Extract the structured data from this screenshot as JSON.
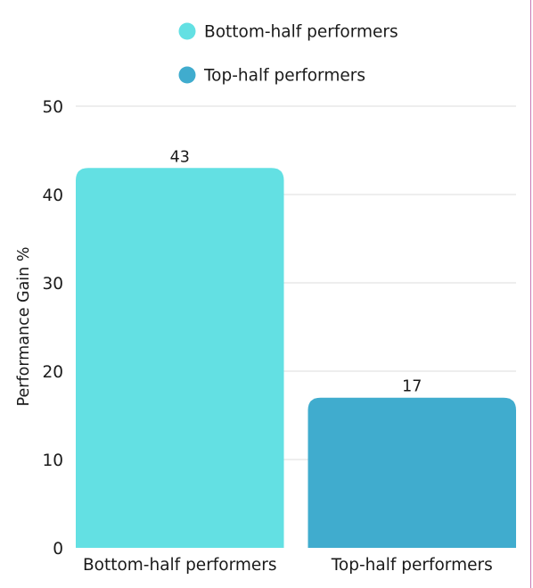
{
  "chart_data": {
    "type": "bar",
    "categories": [
      "Bottom-half performers",
      "Top-half performers"
    ],
    "values": [
      43,
      17
    ],
    "data_labels": [
      "43",
      "17"
    ],
    "colors": [
      "#63e0e3",
      "#40acce"
    ],
    "ylabel": "Performance Gain %",
    "xlabel": "",
    "ylim": [
      0,
      50
    ],
    "yticks": [
      0,
      10,
      20,
      30,
      40,
      50
    ],
    "ytick_labels": [
      "0",
      "10",
      "20",
      "30",
      "40",
      "50"
    ],
    "grid": true,
    "gridline_color": "#dcdcdc",
    "legend": {
      "position": "top",
      "entries": [
        {
          "label": "Bottom-half performers",
          "color": "#63e0e3"
        },
        {
          "label": "Top-half performers",
          "color": "#40acce"
        }
      ]
    }
  },
  "page": {
    "edge_line_color": "#c979b4"
  }
}
